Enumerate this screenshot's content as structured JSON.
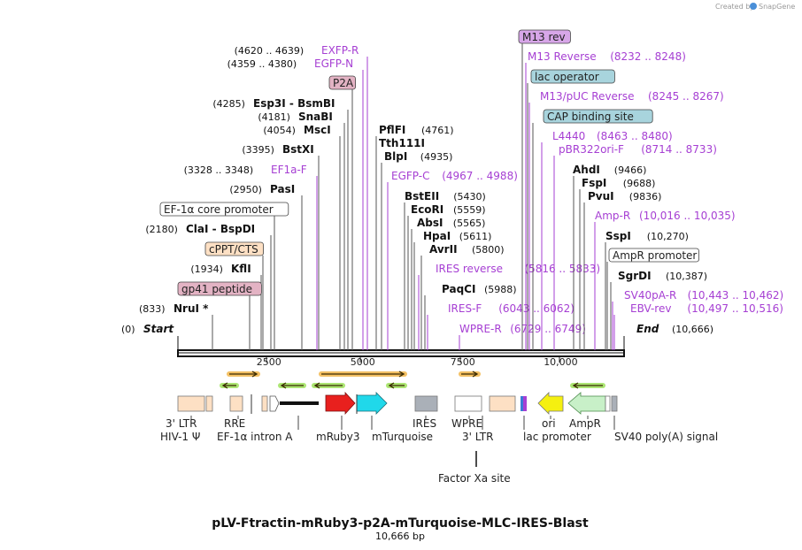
{
  "watermark": "Created by",
  "brand": "SnapGene",
  "title": "pLV-Ftractin-mRuby3-p2A-mTurquoise-MLC-IRES-Blast",
  "subtitle": "10,666 bp",
  "ticks": [
    "2500",
    "5000",
    "7500",
    "10,000"
  ],
  "start": {
    "label": "Start",
    "pos": "(0)"
  },
  "end": {
    "label": "End",
    "pos": "(10,666)"
  },
  "left_labels": [
    {
      "name": "EXFP-R",
      "pos": "(4620 .. 4639)",
      "kind": "primer"
    },
    {
      "name": "EGFP-N",
      "pos": "(4359 .. 4380)",
      "kind": "primer"
    },
    {
      "name": "P2A",
      "pos": "",
      "kind": "box",
      "fill": "#e3b3c4"
    },
    {
      "name": "Esp3I  -  BsmBI",
      "pos": "(4285)",
      "kind": "enzyme"
    },
    {
      "name": "SnaBI",
      "pos": "(4181)",
      "kind": "enzyme"
    },
    {
      "name": "MscI",
      "pos": "(4054)",
      "kind": "enzyme"
    },
    {
      "name": "BstXI",
      "pos": "(3395)",
      "kind": "enzyme"
    },
    {
      "name": "EF1a-F",
      "pos": "(3328 .. 3348)",
      "kind": "primer"
    },
    {
      "name": "PasI",
      "pos": "(2950)",
      "kind": "enzyme"
    },
    {
      "name": "EF-1α core promoter",
      "pos": "",
      "kind": "box",
      "fill": "#ffffff"
    },
    {
      "name": "ClaI  -  BspDI",
      "pos": "(2180)",
      "kind": "enzyme"
    },
    {
      "name": "cPPT/CTS",
      "pos": "",
      "kind": "box",
      "fill": "#fde0c4"
    },
    {
      "name": "KflI",
      "pos": "(1934)",
      "kind": "enzyme"
    },
    {
      "name": "gp41 peptide",
      "pos": "",
      "kind": "box",
      "fill": "#e3b3c4"
    },
    {
      "name": "NruI *",
      "pos": "(833)",
      "kind": "enzyme"
    }
  ],
  "mid_labels": [
    {
      "name": "PflFI",
      "pos": "(4761)",
      "kind": "enzyme"
    },
    {
      "name": "Tth111I",
      "pos": "",
      "kind": "enzyme"
    },
    {
      "name": "BlpI",
      "pos": "(4935)",
      "kind": "enzyme"
    },
    {
      "name": "EGFP-C",
      "pos": "(4967 .. 4988)",
      "kind": "primer"
    },
    {
      "name": "BstEII",
      "pos": "(5430)",
      "kind": "enzyme"
    },
    {
      "name": "EcoRI",
      "pos": "(5559)",
      "kind": "enzyme"
    },
    {
      "name": "AbsI",
      "pos": "(5565)",
      "kind": "enzyme"
    },
    {
      "name": "HpaI",
      "pos": "(5611)",
      "kind": "enzyme"
    },
    {
      "name": "AvrII",
      "pos": "(5800)",
      "kind": "enzyme"
    },
    {
      "name": "IRES reverse",
      "pos": "(5816 .. 5833)",
      "kind": "primer"
    },
    {
      "name": "PaqCI",
      "pos": "(5988)",
      "kind": "enzyme"
    },
    {
      "name": "IRES-F",
      "pos": "(6043 .. 6062)",
      "kind": "primer"
    },
    {
      "name": "WPRE-R",
      "pos": "(6729 .. 6749)",
      "kind": "primer"
    }
  ],
  "right_labels": [
    {
      "name": "M13 rev",
      "pos": "",
      "kind": "box",
      "fill": "#d7a6e8"
    },
    {
      "name": "M13 Reverse",
      "pos": "(8232 .. 8248)",
      "kind": "primer"
    },
    {
      "name": "lac operator",
      "pos": "",
      "kind": "box",
      "fill": "#a8d4dd"
    },
    {
      "name": "M13/pUC Reverse",
      "pos": "(8245 .. 8267)",
      "kind": "primer"
    },
    {
      "name": "CAP binding site",
      "pos": "",
      "kind": "box",
      "fill": "#a8d4dd"
    },
    {
      "name": "L4440",
      "pos": "(8463 .. 8480)",
      "kind": "primer"
    },
    {
      "name": "pBR322ori-F",
      "pos": "(8714 .. 8733)",
      "kind": "primer"
    },
    {
      "name": "AhdI",
      "pos": "(9466)",
      "kind": "enzyme"
    },
    {
      "name": "FspI",
      "pos": "(9688)",
      "kind": "enzyme"
    },
    {
      "name": "PvuI",
      "pos": "(9836)",
      "kind": "enzyme"
    },
    {
      "name": "Amp-R",
      "pos": "(10,016 .. 10,035)",
      "kind": "primer"
    },
    {
      "name": "SspI",
      "pos": "(10,270)",
      "kind": "enzyme"
    },
    {
      "name": "AmpR promoter",
      "pos": "",
      "kind": "box",
      "fill": "#ffffff"
    },
    {
      "name": "SgrDI",
      "pos": "(10,387)",
      "kind": "enzyme"
    },
    {
      "name": "SV40pA-R",
      "pos": "(10,443 .. 10,462)",
      "kind": "primer"
    },
    {
      "name": "EBV-rev",
      "pos": "(10,497 .. 10,516)",
      "kind": "primer"
    }
  ],
  "features": [
    {
      "name": "3' LTR"
    },
    {
      "name": "HIV-1 Ψ"
    },
    {
      "name": "RRE"
    },
    {
      "name": "EF-1α intron A"
    },
    {
      "name": "mRuby3"
    },
    {
      "name": "mTurquoise"
    },
    {
      "name": "IRES"
    },
    {
      "name": "WPRE"
    },
    {
      "name": "3' LTR"
    },
    {
      "name": "lac promoter"
    },
    {
      "name": "ori"
    },
    {
      "name": "AmpR"
    },
    {
      "name": "SV40 poly(A) signal"
    },
    {
      "name": "Factor Xa site"
    }
  ],
  "colors": {
    "primer": "#a63fd3",
    "ltr": "#fde0c4",
    "mruby": "#e8201e",
    "mturq": "#20d8ea",
    "ori": "#f5f010",
    "ampr": "#c8f0c8",
    "ires": "#aab0b8",
    "orf_orange": "#f2b64a",
    "orf_green": "#9ee05a"
  }
}
